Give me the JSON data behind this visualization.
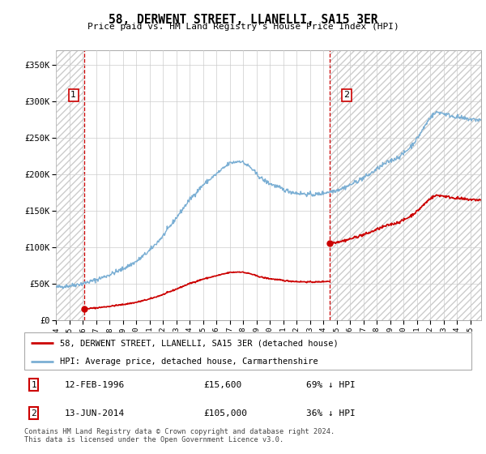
{
  "title": "58, DERWENT STREET, LLANELLI, SA15 3ER",
  "subtitle": "Price paid vs. HM Land Registry's House Price Index (HPI)",
  "ylim": [
    0,
    370000
  ],
  "xlim_start": 1994.0,
  "xlim_end": 2025.8,
  "sale1_date": 1996.12,
  "sale1_price": 15600,
  "sale2_date": 2014.45,
  "sale2_price": 105000,
  "red_line_color": "#cc0000",
  "blue_line_color": "#7bafd4",
  "grid_color": "#cccccc",
  "hatch_edgecolor": "#cccccc",
  "legend_line1": "58, DERWENT STREET, LLANELLI, SA15 3ER (detached house)",
  "legend_line2": "HPI: Average price, detached house, Carmarthenshire",
  "footer": "Contains HM Land Registry data © Crown copyright and database right 2024.\nThis data is licensed under the Open Government Licence v3.0."
}
